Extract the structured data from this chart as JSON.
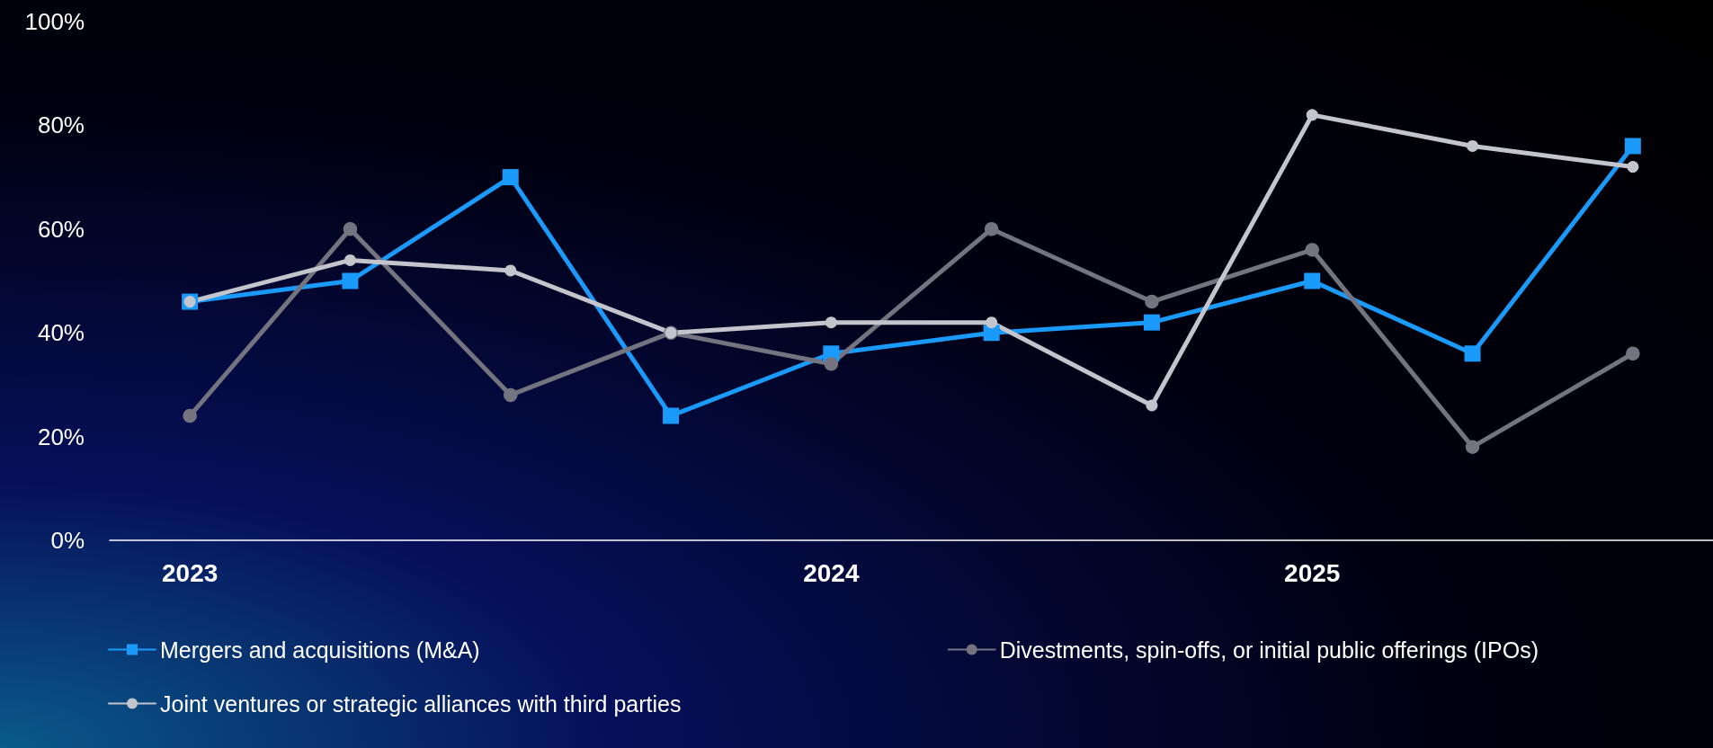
{
  "chart_data": {
    "type": "line",
    "categories": [
      "2023",
      null,
      null,
      null,
      "2024",
      null,
      null,
      "2025",
      null,
      null
    ],
    "series": [
      {
        "name": "Mergers and acquisitions (M&A)",
        "color": "#1a9afa",
        "marker": "square",
        "values": [
          46,
          50,
          70,
          24,
          36,
          40,
          42,
          50,
          36,
          76
        ]
      },
      {
        "name": "Divestments, spin-offs, or initial public offerings (IPOs)",
        "color": "#747480",
        "marker": "circle",
        "values": [
          24,
          60,
          28,
          40,
          34,
          60,
          46,
          56,
          18,
          36
        ]
      },
      {
        "name": "Joint ventures or strategic alliances with third parties",
        "color": "#c4c4cd",
        "marker": "circle",
        "values": [
          46,
          54,
          52,
          40,
          42,
          42,
          26,
          82,
          76,
          72
        ]
      }
    ],
    "ylim": [
      0,
      100
    ],
    "yticks": [
      {
        "value": 0,
        "label": "0%"
      },
      {
        "value": 20,
        "label": "20%"
      },
      {
        "value": 40,
        "label": "40%"
      },
      {
        "value": 60,
        "label": "60%"
      },
      {
        "value": 80,
        "label": "80%"
      },
      {
        "value": 100,
        "label": "100%"
      }
    ],
    "grid": false,
    "legend": "bottom",
    "line_style": "solid"
  }
}
